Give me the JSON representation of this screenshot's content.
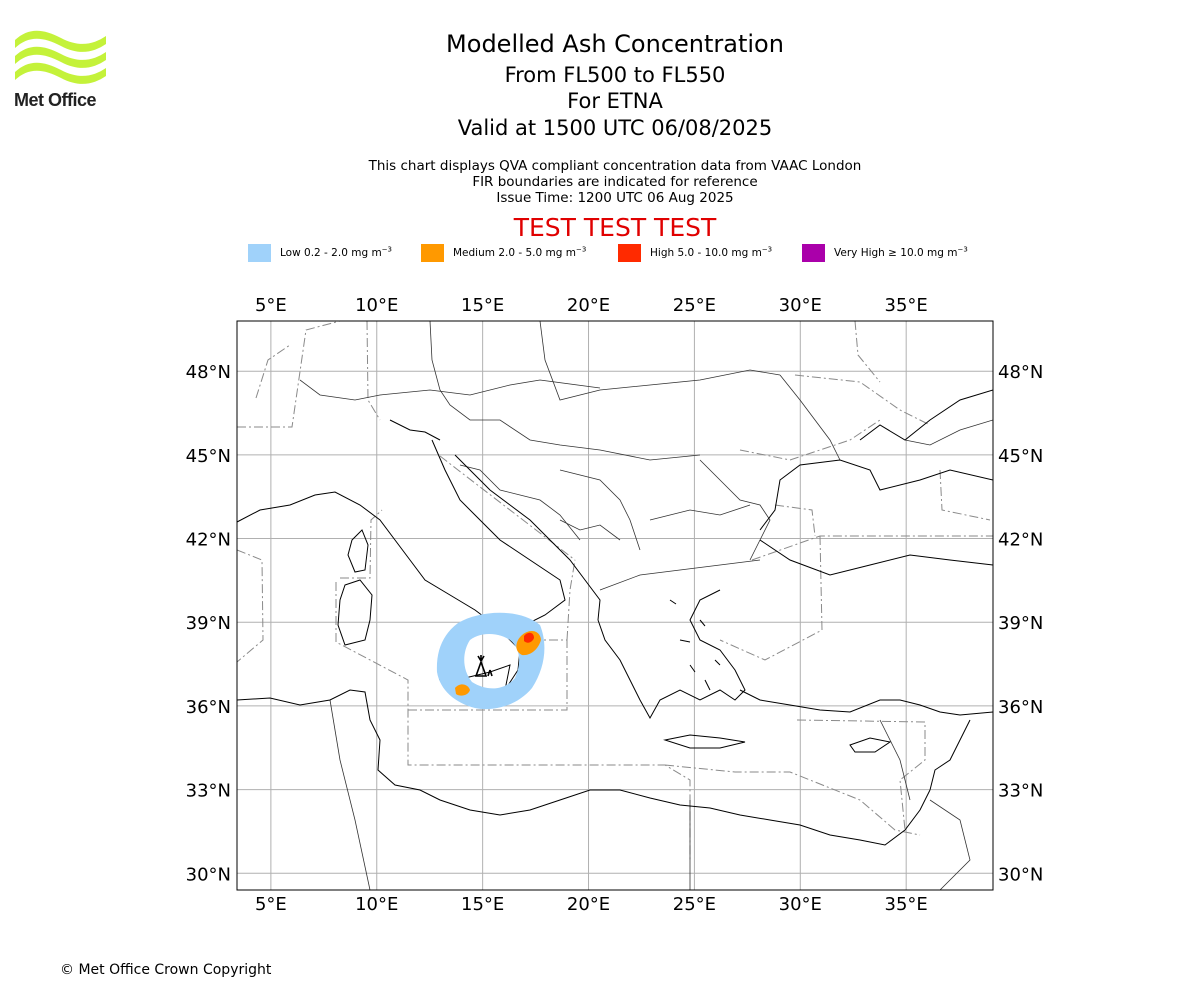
{
  "header": {
    "logo_text": "Met Office",
    "title": "Modelled Ash Concentration",
    "flight_levels": "From FL500 to FL550",
    "volcano": "For ETNA",
    "valid_time": "Valid at 1500 UTC 06/08/2025",
    "note_1": "This chart displays QVA compliant concentration data from VAAC London",
    "note_2": "FIR boundaries are indicated for reference",
    "issue_time": "Issue Time: 1200 UTC 06 Aug 2025",
    "test_banner": "TEST TEST TEST"
  },
  "legend": [
    {
      "label": "Low 0.2 - 2.0 mg m",
      "exp": "−3",
      "color": "#a0d2fa"
    },
    {
      "label": "Medium 2.0 - 5.0 mg m",
      "exp": "−3",
      "color": "#ff9900"
    },
    {
      "label": "High 5.0 - 10.0 mg m",
      "exp": "−3",
      "color": "#ff2a00"
    },
    {
      "label": "Very High  ≥  10.0 mg m",
      "exp": "−3",
      "color": "#aa00aa"
    }
  ],
  "map": {
    "lon_range": [
      3.4,
      39.1
    ],
    "lat_range": [
      29.4,
      49.8
    ],
    "lon_ticks": [
      {
        "value": 5,
        "label": "5°E"
      },
      {
        "value": 10,
        "label": "10°E"
      },
      {
        "value": 15,
        "label": "15°E"
      },
      {
        "value": 20,
        "label": "20°E"
      },
      {
        "value": 25,
        "label": "25°E"
      },
      {
        "value": 30,
        "label": "30°E"
      },
      {
        "value": 35,
        "label": "35°E"
      }
    ],
    "lat_ticks": [
      {
        "value": 48,
        "label": "48°N"
      },
      {
        "value": 45,
        "label": "45°N"
      },
      {
        "value": 42,
        "label": "42°N"
      },
      {
        "value": 39,
        "label": "39°N"
      },
      {
        "value": 36,
        "label": "36°N"
      },
      {
        "value": 33,
        "label": "33°N"
      },
      {
        "value": 30,
        "label": "30°N"
      }
    ],
    "volcano_location": {
      "name": "ETNA",
      "lon": 15.0,
      "lat": 37.75
    },
    "colors": {
      "grid": "#b0b0b0",
      "coast": "#000000",
      "fir": "#8a8a8a"
    }
  },
  "footer": {
    "copyright": "© Met Office Crown Copyright"
  }
}
